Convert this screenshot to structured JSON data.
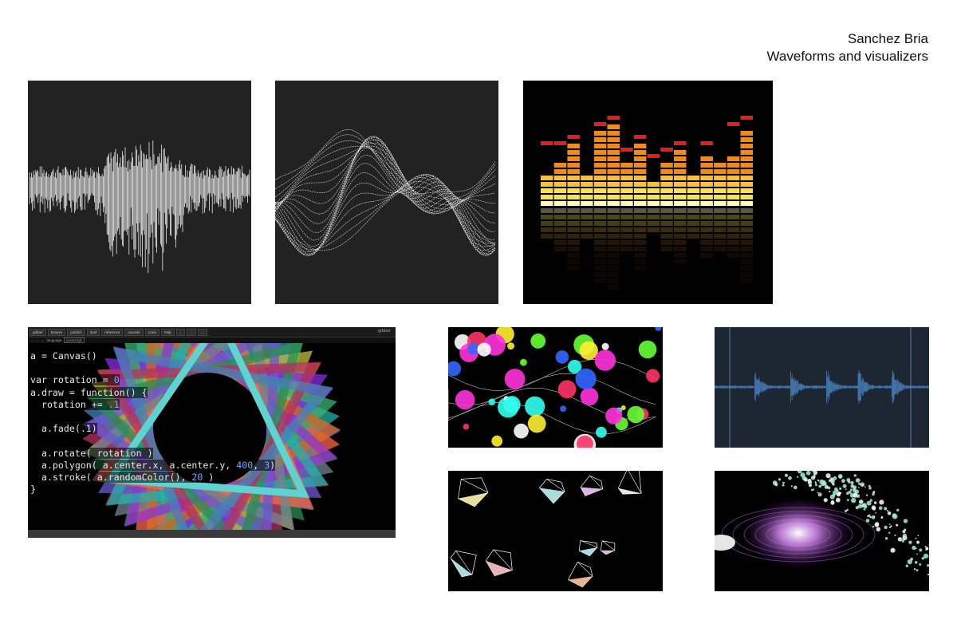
{
  "header": {
    "author": "Sanchez Bria",
    "subtitle": "Waveforms and visualizers"
  },
  "editor": {
    "toolbar_tabs": [
      "gibber",
      "browse",
      "publish",
      "load",
      "reference",
      "console",
      "scale",
      "help",
      "...",
      "...",
      "..."
    ],
    "toolbar_right": "gibber",
    "subbar": [
      "...",
      "...",
      "...",
      "language",
      "javascript"
    ],
    "code_lines": [
      [
        {
          "t": "a = Canvas()"
        }
      ],
      [
        {
          "t": ""
        }
      ],
      [
        {
          "t": "var rotation = "
        },
        {
          "t": "0",
          "num": true
        }
      ],
      [
        {
          "t": "a.draw = function() {"
        }
      ],
      [
        {
          "t": "  rotation += "
        },
        {
          "t": ".1",
          "num": true
        }
      ],
      [
        {
          "t": ""
        }
      ],
      [
        {
          "t": "  a.fade(.1)"
        }
      ],
      [
        {
          "t": ""
        }
      ],
      [
        {
          "t": "  a.rotate( rotation )"
        }
      ],
      [
        {
          "t": "  a.polygon( a.center.x, a.center.y, "
        },
        {
          "t": "400",
          "num": true
        },
        {
          "t": ", "
        },
        {
          "t": "3",
          "num": true
        },
        {
          "t": ")"
        }
      ],
      [
        {
          "t": "  a.stroke( a.randomColor(), "
        },
        {
          "t": "20",
          "num": true
        },
        {
          "t": " )"
        }
      ],
      [
        {
          "t": "}"
        }
      ]
    ]
  },
  "colors": {
    "dark_tile_bg": "#222222",
    "waveform_white": "#ffffff",
    "eq_top_red": "#e02020",
    "eq_orange": "#f08a20",
    "eq_yellow": "#f7e060",
    "eq_cream": "#fff6c0",
    "audio_bg": "#1d2733",
    "audio_wave": "#4c86c6",
    "code_number": "#7aa8ff"
  },
  "thumbnails": [
    {
      "name": "spiky-waveform",
      "style": "white waveform on dark gray"
    },
    {
      "name": "mesh-waveform",
      "style": "white line mesh on dark gray"
    },
    {
      "name": "equalizer-bars",
      "style": "orange/yellow spectrum bars with reflection"
    },
    {
      "name": "colored-orbs",
      "style": "neon circles and curves on black"
    },
    {
      "name": "audio-waveform-editor",
      "style": "blue audio waveform on dark slate"
    },
    {
      "name": "wireframe-polyhedra",
      "style": "white wireframe shapes on black"
    },
    {
      "name": "particle-galaxy",
      "style": "purple light burst with green particles"
    }
  ],
  "equalizer": {
    "bars_levels": [
      5,
      7,
      10,
      5,
      12,
      13,
      7,
      10,
      4,
      7,
      9,
      5,
      8,
      7,
      8,
      12
    ],
    "bars_peaks": [
      9,
      9,
      10,
      0,
      12,
      13,
      8,
      10,
      7,
      8,
      9,
      0,
      9,
      0,
      12,
      13
    ]
  }
}
